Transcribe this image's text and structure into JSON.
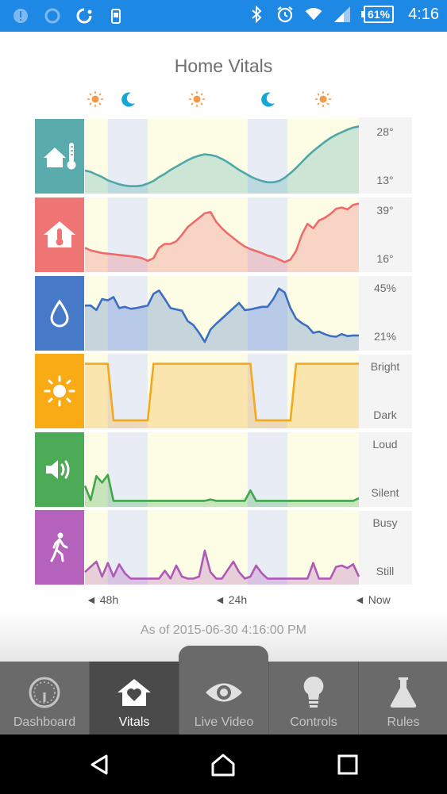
{
  "status_bar": {
    "icons": [
      "alert-icon",
      "sync-icon",
      "circle-icon",
      "phone-icon",
      "bluetooth-icon",
      "alarm-icon",
      "wifi-icon",
      "signal-icon"
    ],
    "battery": "61%",
    "time": "4:16",
    "color": "#1e88e5"
  },
  "page": {
    "title": "Home Vitals"
  },
  "day_night": [
    "sun",
    "moon",
    "sun",
    "moon",
    "sun"
  ],
  "chart_data": {
    "type": "area",
    "x": [
      0,
      1,
      2,
      3,
      4,
      5,
      6,
      7,
      8,
      9,
      10,
      11,
      12,
      13,
      14,
      15,
      16,
      17,
      18,
      19,
      20,
      21,
      22,
      23,
      24,
      25,
      26,
      27,
      28,
      29,
      30,
      31,
      32,
      33,
      34,
      35,
      36,
      37,
      38,
      39,
      40,
      41,
      42,
      43,
      44,
      45,
      46,
      47,
      48
    ],
    "x_ticks": [
      "◄ 48h",
      "◄ 24h",
      "◄ Now"
    ],
    "night_bands": [
      [
        4,
        11
      ],
      [
        28.5,
        35.5
      ]
    ],
    "series": [
      {
        "icon": "home-thermometer-icon",
        "color": "#4fa8a8",
        "tile_color": "#5aabab",
        "labels": [
          "28°",
          "13°"
        ],
        "values": [
          0.28,
          0.26,
          0.22,
          0.18,
          0.13,
          0.1,
          0.07,
          0.05,
          0.04,
          0.04,
          0.05,
          0.08,
          0.12,
          0.18,
          0.23,
          0.29,
          0.34,
          0.39,
          0.44,
          0.48,
          0.51,
          0.53,
          0.52,
          0.5,
          0.46,
          0.41,
          0.35,
          0.29,
          0.24,
          0.19,
          0.15,
          0.12,
          0.1,
          0.1,
          0.12,
          0.17,
          0.24,
          0.32,
          0.41,
          0.5,
          0.58,
          0.65,
          0.72,
          0.78,
          0.83,
          0.87,
          0.91,
          0.94,
          0.96
        ]
      },
      {
        "icon": "home-thermometer-icon",
        "color": "#ee6b6b",
        "tile_color": "#ef7474",
        "labels": [
          "39°",
          "16°"
        ],
        "values": [
          0.3,
          0.26,
          0.24,
          0.22,
          0.21,
          0.2,
          0.19,
          0.18,
          0.17,
          0.16,
          0.14,
          0.1,
          0.14,
          0.3,
          0.36,
          0.36,
          0.4,
          0.5,
          0.62,
          0.69,
          0.76,
          0.83,
          0.85,
          0.7,
          0.6,
          0.52,
          0.45,
          0.38,
          0.32,
          0.28,
          0.25,
          0.22,
          0.18,
          0.16,
          0.12,
          0.08,
          0.12,
          0.25,
          0.5,
          0.67,
          0.6,
          0.72,
          0.76,
          0.82,
          0.9,
          0.92,
          0.89,
          0.96,
          0.98
        ]
      },
      {
        "icon": "water-drop-icon",
        "color": "#3b6fc2",
        "tile_color": "#4779c9",
        "labels": [
          "45%",
          "21%"
        ],
        "values": [
          0.62,
          0.62,
          0.55,
          0.72,
          0.7,
          0.75,
          0.58,
          0.6,
          0.57,
          0.58,
          0.6,
          0.62,
          0.8,
          0.85,
          0.72,
          0.58,
          0.56,
          0.54,
          0.38,
          0.32,
          0.2,
          0.06,
          0.25,
          0.34,
          0.42,
          0.5,
          0.58,
          0.66,
          0.55,
          0.56,
          0.58,
          0.6,
          0.6,
          0.72,
          0.88,
          0.82,
          0.58,
          0.42,
          0.35,
          0.3,
          0.2,
          0.22,
          0.18,
          0.15,
          0.14,
          0.18,
          0.15,
          0.16,
          0.16
        ]
      },
      {
        "icon": "sun-icon",
        "color": "#f5a81c",
        "tile_color": "#f9ab15",
        "labels": [
          "Bright",
          "Dark"
        ],
        "values": [
          0.92,
          0.92,
          0.92,
          0.92,
          0.92,
          0.05,
          0.05,
          0.05,
          0.05,
          0.05,
          0.05,
          0.05,
          0.92,
          0.92,
          0.92,
          0.92,
          0.92,
          0.92,
          0.92,
          0.92,
          0.92,
          0.92,
          0.92,
          0.92,
          0.92,
          0.92,
          0.92,
          0.92,
          0.92,
          0.92,
          0.05,
          0.05,
          0.05,
          0.05,
          0.05,
          0.05,
          0.05,
          0.92,
          0.92,
          0.92,
          0.92,
          0.92,
          0.92,
          0.92,
          0.92,
          0.92,
          0.92,
          0.92,
          0.92
        ]
      },
      {
        "icon": "speaker-icon",
        "color": "#3fa64c",
        "tile_color": "#4cab57",
        "labels": [
          "Loud",
          "Silent"
        ],
        "values": [
          0.25,
          0.03,
          0.4,
          0.3,
          0.42,
          0.02,
          0.02,
          0.02,
          0.02,
          0.02,
          0.02,
          0.02,
          0.02,
          0.02,
          0.02,
          0.02,
          0.02,
          0.02,
          0.02,
          0.02,
          0.02,
          0.02,
          0.04,
          0.02,
          0.02,
          0.02,
          0.02,
          0.02,
          0.02,
          0.18,
          0.02,
          0.02,
          0.02,
          0.02,
          0.02,
          0.02,
          0.02,
          0.02,
          0.02,
          0.02,
          0.02,
          0.02,
          0.02,
          0.02,
          0.02,
          0.02,
          0.02,
          0.02,
          0.06
        ]
      },
      {
        "icon": "walking-person-icon",
        "color": "#b058b8",
        "tile_color": "#b462bc",
        "labels": [
          "Busy",
          "Still"
        ],
        "values": [
          0.12,
          0.2,
          0.28,
          0.05,
          0.26,
          0.05,
          0.24,
          0.1,
          0.02,
          0.02,
          0.02,
          0.02,
          0.02,
          0.02,
          0.14,
          0.02,
          0.22,
          0.05,
          0.02,
          0.02,
          0.05,
          0.45,
          0.12,
          0.02,
          0.02,
          0.15,
          0.28,
          0.12,
          0.02,
          0.05,
          0.22,
          0.1,
          0.02,
          0.02,
          0.02,
          0.02,
          0.02,
          0.02,
          0.02,
          0.02,
          0.26,
          0.02,
          0.02,
          0.02,
          0.2,
          0.22,
          0.18,
          0.24,
          0.05
        ]
      }
    ]
  },
  "as_of": "As of 2015-06-30 4:16:00 PM",
  "tabs": [
    {
      "label": "Dashboard",
      "icon": "gauge-icon",
      "active": false
    },
    {
      "label": "Vitals",
      "icon": "home-heart-icon",
      "active": true
    },
    {
      "label": "Live Video",
      "icon": "eye-icon",
      "active": false
    },
    {
      "label": "Controls",
      "icon": "lightbulb-icon",
      "active": false
    },
    {
      "label": "Rules",
      "icon": "flask-icon",
      "active": false
    }
  ],
  "nav": [
    "back-icon",
    "home-icon",
    "recents-icon"
  ]
}
